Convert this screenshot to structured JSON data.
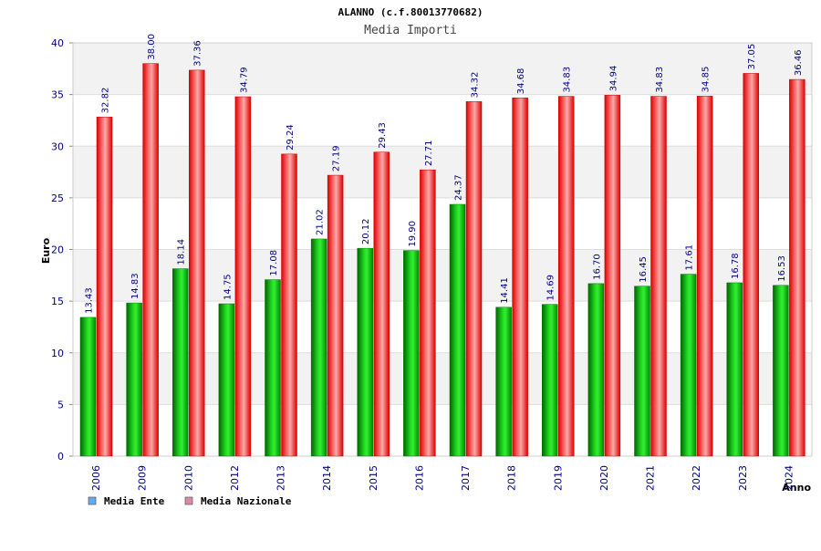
{
  "chart_data": {
    "type": "bar",
    "title": "ALANNO (c.f.80013770682)",
    "subtitle": "Media Importi",
    "ylabel": "Euro",
    "xlabel": "Anno",
    "ylim": [
      0,
      40
    ],
    "yticks": [
      0,
      5,
      10,
      15,
      20,
      25,
      30,
      35,
      40
    ],
    "categories": [
      "2006",
      "2009",
      "2010",
      "2012",
      "2013",
      "2014",
      "2015",
      "2016",
      "2017",
      "2018",
      "2019",
      "2020",
      "2021",
      "2022",
      "2023",
      "2024"
    ],
    "series": [
      {
        "name": "Media Ente",
        "values": [
          13.43,
          14.83,
          18.14,
          14.75,
          17.08,
          21.02,
          20.12,
          19.9,
          24.37,
          14.41,
          14.69,
          16.7,
          16.45,
          17.61,
          16.78,
          16.53
        ],
        "labels": [
          "13.43",
          "14.83",
          "18.14",
          "14.75",
          "17.08",
          "21.02",
          "20.12",
          "19.90",
          "24.37",
          "14.41",
          "14.69",
          "16.70",
          "16.45",
          "17.61",
          "16.78",
          "16.53"
        ],
        "color": "#00aa00",
        "legend_color": "#66aaee"
      },
      {
        "name": "Media Nazionale",
        "values": [
          32.82,
          38.0,
          37.36,
          34.79,
          29.24,
          27.19,
          29.43,
          27.71,
          34.32,
          34.68,
          34.83,
          34.94,
          34.83,
          34.85,
          37.05,
          36.46
        ],
        "labels": [
          "32.82",
          "38.00",
          "37.36",
          "34.79",
          "29.24",
          "27.19",
          "29.43",
          "27.71",
          "34.32",
          "34.68",
          "34.83",
          "34.94",
          "34.83",
          "34.85",
          "37.05",
          "36.46"
        ],
        "color": "#ee1111",
        "legend_color": "#dd88aa"
      }
    ],
    "grid": true,
    "legend_position": "bottom-left"
  }
}
